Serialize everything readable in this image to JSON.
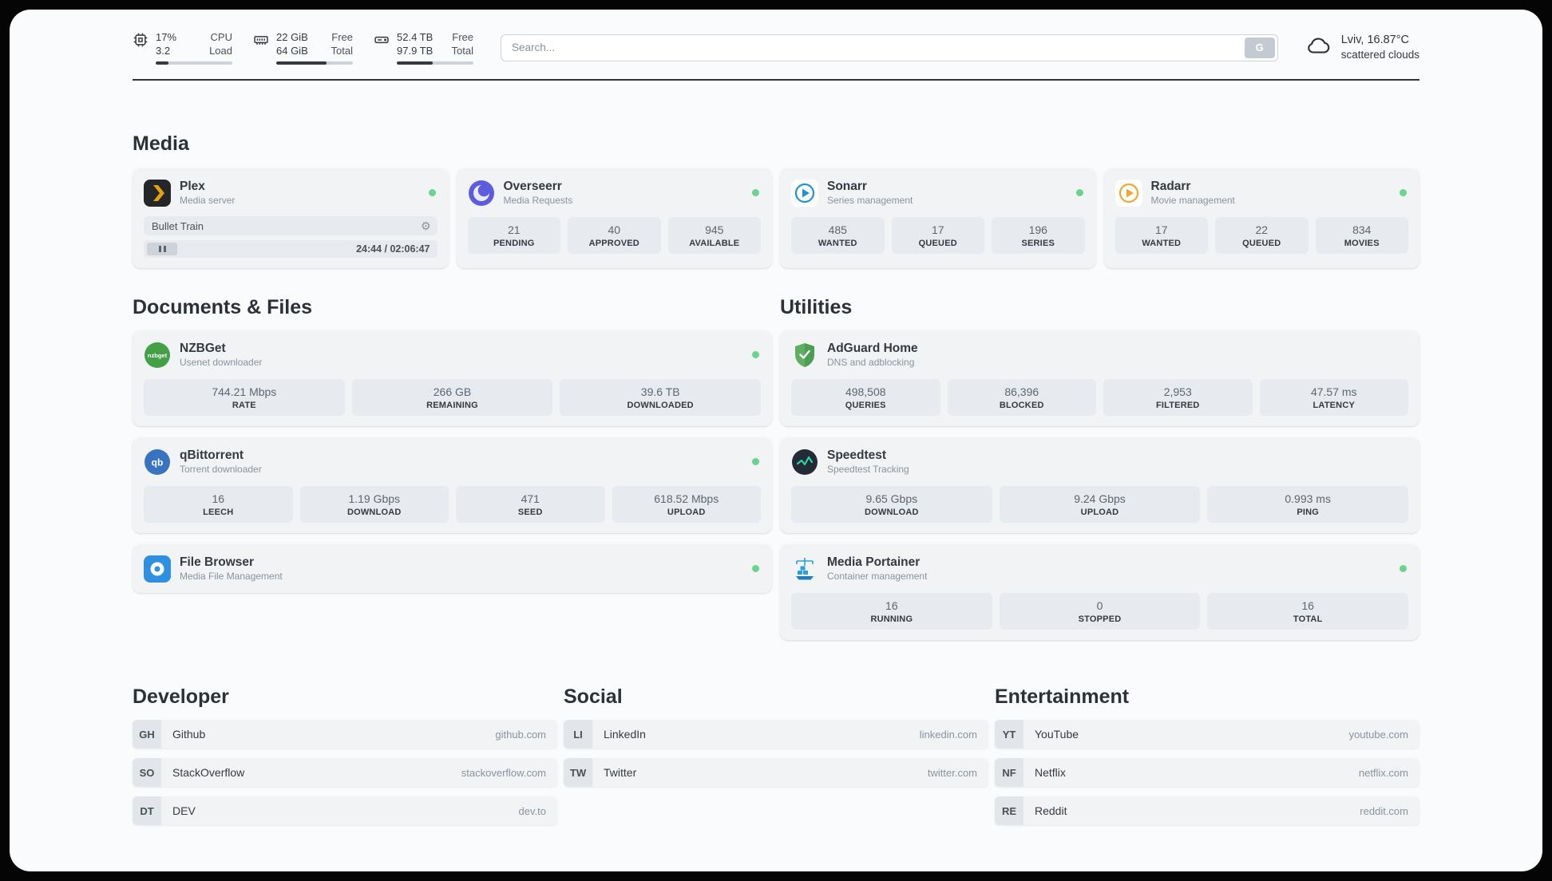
{
  "header": {
    "cpu": {
      "value_top": "17%",
      "value_bottom": "3.2",
      "label_top": "CPU",
      "label_bottom": "Load",
      "bar_width": "17%"
    },
    "ram": {
      "value_top": "22 GiB",
      "value_bottom": "64 GiB",
      "label_top": "Free",
      "label_bottom": "Total",
      "bar_width": "66%"
    },
    "disk": {
      "value_top": "52.4 TB",
      "value_bottom": "97.9 TB",
      "label_top": "Free",
      "label_bottom": "Total",
      "bar_width": "47%"
    },
    "search": {
      "placeholder": "Search...",
      "button_label": "G"
    },
    "weather": {
      "location_temp": "Lviv, 16.87°C",
      "condition": "scattered clouds"
    }
  },
  "sections": {
    "media": "Media",
    "documents": "Documents & Files",
    "utilities": "Utilities",
    "developer": "Developer",
    "social": "Social",
    "entertainment": "Entertainment"
  },
  "apps": {
    "plex": {
      "name": "Plex",
      "desc": "Media server",
      "now_playing": "Bullet Train",
      "time": "24:44 / 02:06:47",
      "gear_glyph": "⚙"
    },
    "overseerr": {
      "name": "Overseerr",
      "desc": "Media Requests",
      "stats": [
        {
          "value": "21",
          "label": "PENDING"
        },
        {
          "value": "40",
          "label": "APPROVED"
        },
        {
          "value": "945",
          "label": "AVAILABLE"
        }
      ]
    },
    "sonarr": {
      "name": "Sonarr",
      "desc": "Series management",
      "stats": [
        {
          "value": "485",
          "label": "WANTED"
        },
        {
          "value": "17",
          "label": "QUEUED"
        },
        {
          "value": "196",
          "label": "SERIES"
        }
      ]
    },
    "radarr": {
      "name": "Radarr",
      "desc": "Movie management",
      "stats": [
        {
          "value": "17",
          "label": "WANTED"
        },
        {
          "value": "22",
          "label": "QUEUED"
        },
        {
          "value": "834",
          "label": "MOVIES"
        }
      ]
    },
    "nzbget": {
      "name": "NZBGet",
      "desc": "Usenet downloader",
      "icon_text": "nzbget",
      "stats": [
        {
          "value": "744.21 Mbps",
          "label": "RATE"
        },
        {
          "value": "266 GB",
          "label": "REMAINING"
        },
        {
          "value": "39.6 TB",
          "label": "DOWNLOADED"
        }
      ]
    },
    "qbittorrent": {
      "name": "qBittorrent",
      "desc": "Torrent downloader",
      "icon_text": "qb",
      "stats": [
        {
          "value": "16",
          "label": "LEECH"
        },
        {
          "value": "1.19 Gbps",
          "label": "DOWNLOAD"
        },
        {
          "value": "471",
          "label": "SEED"
        },
        {
          "value": "618.52 Mbps",
          "label": "UPLOAD"
        }
      ]
    },
    "filebrowser": {
      "name": "File Browser",
      "desc": "Media File Management"
    },
    "adguard": {
      "name": "AdGuard Home",
      "desc": "DNS and adblocking",
      "stats": [
        {
          "value": "498,508",
          "label": "QUERIES"
        },
        {
          "value": "86,396",
          "label": "BLOCKED"
        },
        {
          "value": "2,953",
          "label": "FILTERED"
        },
        {
          "value": "47.57 ms",
          "label": "LATENCY"
        }
      ]
    },
    "speedtest": {
      "name": "Speedtest",
      "desc": "Speedtest Tracking",
      "stats": [
        {
          "value": "9.65 Gbps",
          "label": "DOWNLOAD"
        },
        {
          "value": "9.24 Gbps",
          "label": "UPLOAD"
        },
        {
          "value": "0.993 ms",
          "label": "PING"
        }
      ]
    },
    "portainer": {
      "name": "Media Portainer",
      "desc": "Container management",
      "stats": [
        {
          "value": "16",
          "label": "RUNNING"
        },
        {
          "value": "0",
          "label": "STOPPED"
        },
        {
          "value": "16",
          "label": "TOTAL"
        }
      ]
    }
  },
  "bookmarks": {
    "developer": [
      {
        "abbr": "GH",
        "name": "Github",
        "url": "github.com"
      },
      {
        "abbr": "SO",
        "name": "StackOverflow",
        "url": "stackoverflow.com"
      },
      {
        "abbr": "DT",
        "name": "DEV",
        "url": "dev.to"
      }
    ],
    "social": [
      {
        "abbr": "LI",
        "name": "LinkedIn",
        "url": "linkedin.com"
      },
      {
        "abbr": "TW",
        "name": "Twitter",
        "url": "twitter.com"
      }
    ],
    "entertainment": [
      {
        "abbr": "YT",
        "name": "YouTube",
        "url": "youtube.com"
      },
      {
        "abbr": "NF",
        "name": "Netflix",
        "url": "netflix.com"
      },
      {
        "abbr": "RE",
        "name": "Reddit",
        "url": "reddit.com"
      }
    ]
  },
  "colors": {
    "status_online": "#69d48c",
    "plex_yellow": "#e5a00d",
    "sonarr_blue": "#2193d1",
    "radarr_orange": "#f0a732",
    "nzbget_green": "#43a047",
    "adguard_green": "#5fae63",
    "qbittorrent_blue": "#3873c0",
    "filebrowser_blue": "#2f8fe0",
    "portainer_blue": "#2a9fd8",
    "speedtest_dark": "#232c36"
  }
}
